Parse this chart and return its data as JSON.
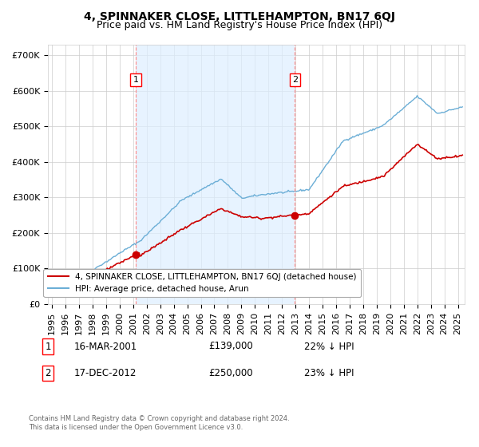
{
  "title": "4, SPINNAKER CLOSE, LITTLEHAMPTON, BN17 6QJ",
  "subtitle": "Price paid vs. HM Land Registry's House Price Index (HPI)",
  "ylabel_ticks": [
    "£0",
    "£100K",
    "£200K",
    "£300K",
    "£400K",
    "£500K",
    "£600K",
    "£700K"
  ],
  "ytick_values": [
    0,
    100000,
    200000,
    300000,
    400000,
    500000,
    600000,
    700000
  ],
  "ylim": [
    0,
    730000
  ],
  "xlim_start": 1994.7,
  "xlim_end": 2025.5,
  "hpi_color": "#6baed6",
  "price_color": "#cc0000",
  "shade_color": "#ddeeff",
  "dashed_line_color": "#ff8888",
  "background_color": "#ffffff",
  "grid_color": "#cccccc",
  "legend_items": [
    "4, SPINNAKER CLOSE, LITTLEHAMPTON, BN17 6QJ (detached house)",
    "HPI: Average price, detached house, Arun"
  ],
  "annotation1": {
    "num": "1",
    "date": "16-MAR-2001",
    "price": "£139,000",
    "note": "22% ↓ HPI"
  },
  "annotation2": {
    "num": "2",
    "date": "17-DEC-2012",
    "price": "£250,000",
    "note": "23% ↓ HPI"
  },
  "footnote1": "Contains HM Land Registry data © Crown copyright and database right 2024.",
  "footnote2": "This data is licensed under the Open Government Licence v3.0.",
  "sale1_x": 2001.21,
  "sale1_y": 139000,
  "sale2_x": 2012.96,
  "sale2_y": 250000,
  "title_fontsize": 10,
  "subtitle_fontsize": 9,
  "tick_fontsize": 8
}
